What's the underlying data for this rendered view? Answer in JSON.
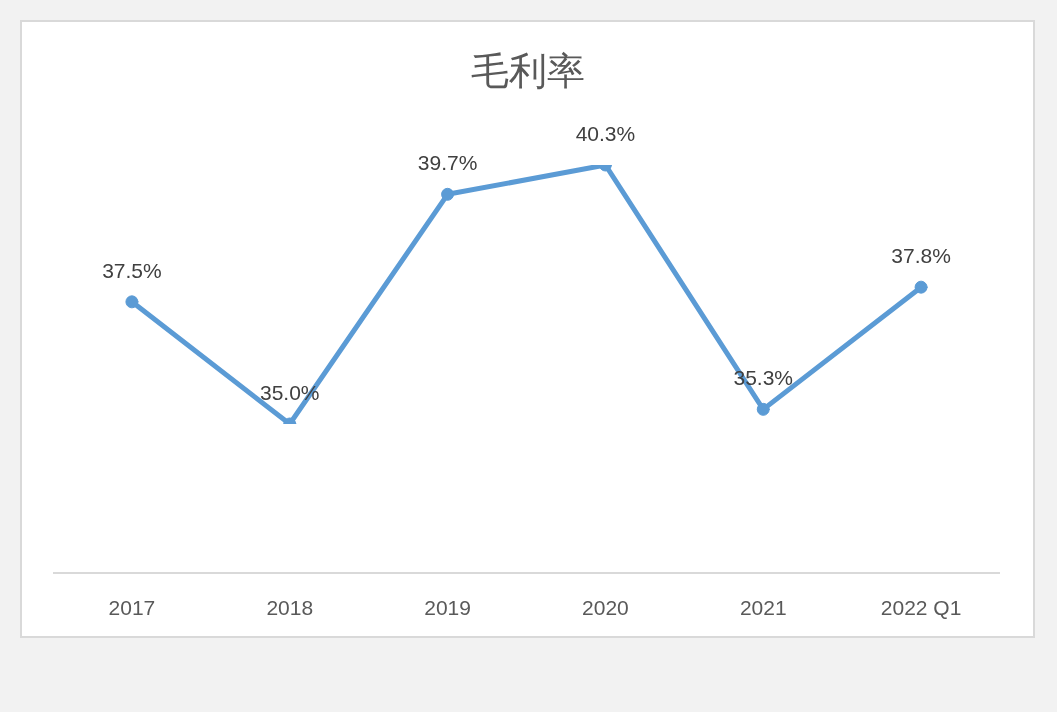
{
  "chart_data": {
    "type": "line",
    "title": "毛利率",
    "categories": [
      "2017",
      "2018",
      "2019",
      "2020",
      "2021",
      "2022 Q1"
    ],
    "values": [
      37.5,
      35.0,
      39.7,
      40.3,
      35.3,
      37.8
    ],
    "value_labels": [
      "37.5%",
      "35.0%",
      "39.7%",
      "40.3%",
      "35.3%",
      "37.8%"
    ],
    "color": "#5b9bd5",
    "tick_labels": "x",
    "marker": "circle",
    "line_style": "solid"
  }
}
